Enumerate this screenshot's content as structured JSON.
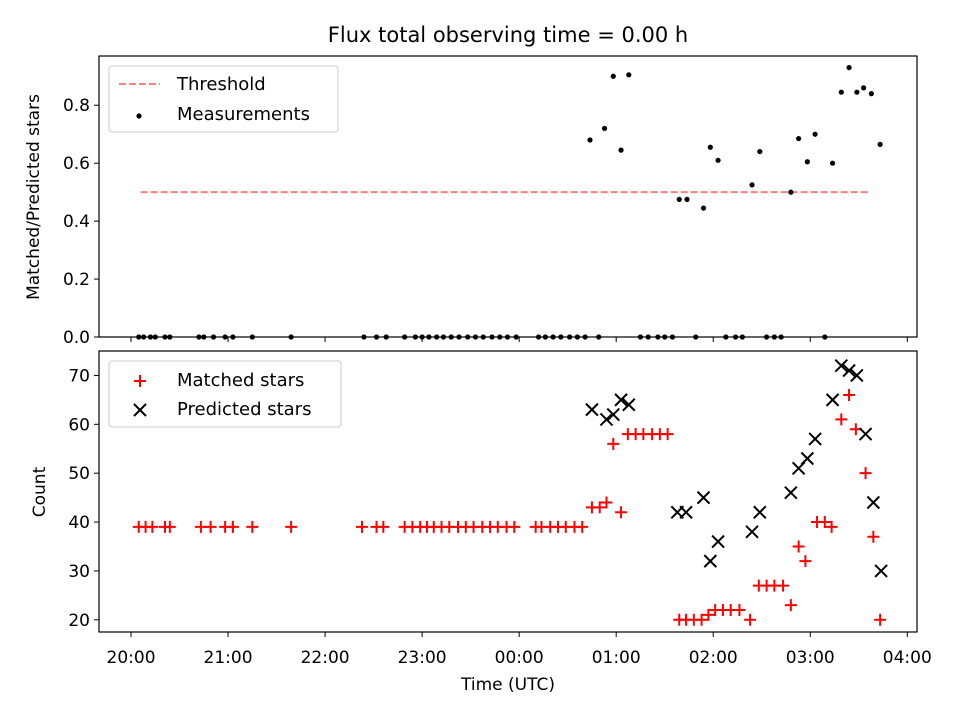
{
  "chart_data": [
    {
      "type": "scatter",
      "title": "Flux total observing time = 0.00 h",
      "xlabel": "",
      "ylabel": "Matched/Predicted stars",
      "ylim": [
        0,
        0.97
      ],
      "yticks": [
        "0.0",
        "0.2",
        "0.4",
        "0.6",
        "0.8"
      ],
      "ytick_values": [
        0,
        0.2,
        0.4,
        0.6,
        0.8
      ],
      "legend_position": "upper-left",
      "threshold": {
        "name": "Threshold",
        "value": 0.5,
        "x_start": 20.1,
        "x_end": 27.6,
        "color": "#ff7f7f",
        "style": "dashed"
      },
      "series": [
        {
          "name": "Measurements",
          "color": "#000000",
          "marker": "dot",
          "points": [
            [
              20.08,
              0
            ],
            [
              20.13,
              0
            ],
            [
              20.2,
              0
            ],
            [
              20.25,
              0
            ],
            [
              20.35,
              0
            ],
            [
              20.4,
              0
            ],
            [
              20.7,
              0
            ],
            [
              20.75,
              0
            ],
            [
              20.85,
              0
            ],
            [
              20.97,
              0
            ],
            [
              21.05,
              0
            ],
            [
              21.25,
              0
            ],
            [
              21.65,
              0
            ],
            [
              22.4,
              0
            ],
            [
              22.53,
              0
            ],
            [
              22.63,
              0
            ],
            [
              22.82,
              0
            ],
            [
              22.93,
              0
            ],
            [
              23.0,
              0
            ],
            [
              23.07,
              0
            ],
            [
              23.15,
              0
            ],
            [
              23.22,
              0
            ],
            [
              23.3,
              0
            ],
            [
              23.38,
              0
            ],
            [
              23.47,
              0
            ],
            [
              23.55,
              0
            ],
            [
              23.63,
              0
            ],
            [
              23.72,
              0
            ],
            [
              23.8,
              0
            ],
            [
              23.88,
              0
            ],
            [
              23.97,
              0
            ],
            [
              24.2,
              0
            ],
            [
              24.27,
              0
            ],
            [
              24.35,
              0
            ],
            [
              24.43,
              0
            ],
            [
              24.52,
              0
            ],
            [
              24.6,
              0
            ],
            [
              24.68,
              0
            ],
            [
              24.82,
              0
            ],
            [
              24.73,
              0.68
            ],
            [
              24.88,
              0.72
            ],
            [
              24.97,
              0.9
            ],
            [
              25.05,
              0.645
            ],
            [
              25.13,
              0.905
            ],
            [
              25.25,
              0
            ],
            [
              25.33,
              0
            ],
            [
              25.43,
              0
            ],
            [
              25.5,
              0
            ],
            [
              25.58,
              0
            ],
            [
              25.65,
              0.475
            ],
            [
              25.73,
              0.475
            ],
            [
              25.82,
              0
            ],
            [
              25.9,
              0.445
            ],
            [
              25.97,
              0.655
            ],
            [
              26.05,
              0.61
            ],
            [
              26.13,
              0
            ],
            [
              26.23,
              0
            ],
            [
              26.3,
              0
            ],
            [
              26.4,
              0.525
            ],
            [
              26.48,
              0.64
            ],
            [
              26.55,
              0
            ],
            [
              26.63,
              0
            ],
            [
              26.7,
              0
            ],
            [
              26.8,
              0.5
            ],
            [
              26.88,
              0.685
            ],
            [
              26.97,
              0.605
            ],
            [
              27.05,
              0.7
            ],
            [
              27.15,
              0
            ],
            [
              27.23,
              0.6
            ],
            [
              27.32,
              0.845
            ],
            [
              27.4,
              0.93
            ],
            [
              27.48,
              0.845
            ],
            [
              27.55,
              0.86
            ],
            [
              27.63,
              0.84
            ],
            [
              27.72,
              0.665
            ]
          ]
        }
      ]
    },
    {
      "type": "scatter",
      "title": "",
      "xlabel": "Time (UTC)",
      "ylabel": "Count",
      "xlim": [
        19.67,
        28.1
      ],
      "ylim": [
        17.5,
        75
      ],
      "xticks": [
        "20:00",
        "21:00",
        "22:00",
        "23:00",
        "00:00",
        "01:00",
        "02:00",
        "03:00",
        "04:00"
      ],
      "xtick_values": [
        20,
        21,
        22,
        23,
        24,
        25,
        26,
        27,
        28
      ],
      "yticks": [
        "20",
        "30",
        "40",
        "50",
        "60",
        "70"
      ],
      "ytick_values": [
        20,
        30,
        40,
        50,
        60,
        70
      ],
      "legend_position": "upper-left",
      "series": [
        {
          "name": "Matched stars",
          "color": "#ff0000",
          "marker": "plus",
          "points": [
            [
              20.08,
              39
            ],
            [
              20.15,
              39
            ],
            [
              20.22,
              39
            ],
            [
              20.35,
              39
            ],
            [
              20.4,
              39
            ],
            [
              20.72,
              39
            ],
            [
              20.82,
              39
            ],
            [
              20.97,
              39
            ],
            [
              21.05,
              39
            ],
            [
              21.25,
              39
            ],
            [
              21.65,
              39
            ],
            [
              22.38,
              39
            ],
            [
              22.53,
              39
            ],
            [
              22.6,
              39
            ],
            [
              22.82,
              39
            ],
            [
              22.9,
              39
            ],
            [
              22.98,
              39
            ],
            [
              23.05,
              39
            ],
            [
              23.12,
              39
            ],
            [
              23.2,
              39
            ],
            [
              23.28,
              39
            ],
            [
              23.37,
              39
            ],
            [
              23.45,
              39
            ],
            [
              23.53,
              39
            ],
            [
              23.62,
              39
            ],
            [
              23.7,
              39
            ],
            [
              23.78,
              39
            ],
            [
              23.87,
              39
            ],
            [
              23.95,
              39
            ],
            [
              24.17,
              39
            ],
            [
              24.23,
              39
            ],
            [
              24.32,
              39
            ],
            [
              24.4,
              39
            ],
            [
              24.48,
              39
            ],
            [
              24.57,
              39
            ],
            [
              24.65,
              39
            ],
            [
              24.75,
              43
            ],
            [
              24.83,
              43
            ],
            [
              24.9,
              44
            ],
            [
              24.97,
              56
            ],
            [
              25.05,
              42
            ],
            [
              25.12,
              58
            ],
            [
              25.2,
              58
            ],
            [
              25.28,
              58
            ],
            [
              25.37,
              58
            ],
            [
              25.45,
              58
            ],
            [
              25.53,
              58
            ],
            [
              25.65,
              20
            ],
            [
              25.72,
              20
            ],
            [
              25.8,
              20
            ],
            [
              25.88,
              20
            ],
            [
              25.95,
              21
            ],
            [
              26.02,
              22
            ],
            [
              26.1,
              22
            ],
            [
              26.18,
              22
            ],
            [
              26.27,
              22
            ],
            [
              26.38,
              20
            ],
            [
              26.47,
              27
            ],
            [
              26.55,
              27
            ],
            [
              26.63,
              27
            ],
            [
              26.72,
              27
            ],
            [
              26.8,
              23
            ],
            [
              26.88,
              35
            ],
            [
              26.95,
              32
            ],
            [
              27.07,
              40
            ],
            [
              27.15,
              40
            ],
            [
              27.22,
              39
            ],
            [
              27.32,
              61
            ],
            [
              27.4,
              66
            ],
            [
              27.47,
              59
            ],
            [
              27.57,
              50
            ],
            [
              27.65,
              37
            ],
            [
              27.72,
              20
            ]
          ]
        },
        {
          "name": "Predicted stars",
          "color": "#000000",
          "marker": "cross",
          "points": [
            [
              24.75,
              63
            ],
            [
              24.9,
              61
            ],
            [
              24.97,
              62
            ],
            [
              25.05,
              65
            ],
            [
              25.13,
              64
            ],
            [
              25.63,
              42
            ],
            [
              25.72,
              42
            ],
            [
              25.9,
              45
            ],
            [
              25.97,
              32
            ],
            [
              26.05,
              36
            ],
            [
              26.4,
              38
            ],
            [
              26.48,
              42
            ],
            [
              26.8,
              46
            ],
            [
              26.88,
              51
            ],
            [
              26.97,
              53
            ],
            [
              27.05,
              57
            ],
            [
              27.23,
              65
            ],
            [
              27.32,
              72
            ],
            [
              27.4,
              71
            ],
            [
              27.48,
              70
            ],
            [
              27.57,
              58
            ],
            [
              27.65,
              44
            ],
            [
              27.73,
              30
            ]
          ]
        }
      ]
    }
  ]
}
